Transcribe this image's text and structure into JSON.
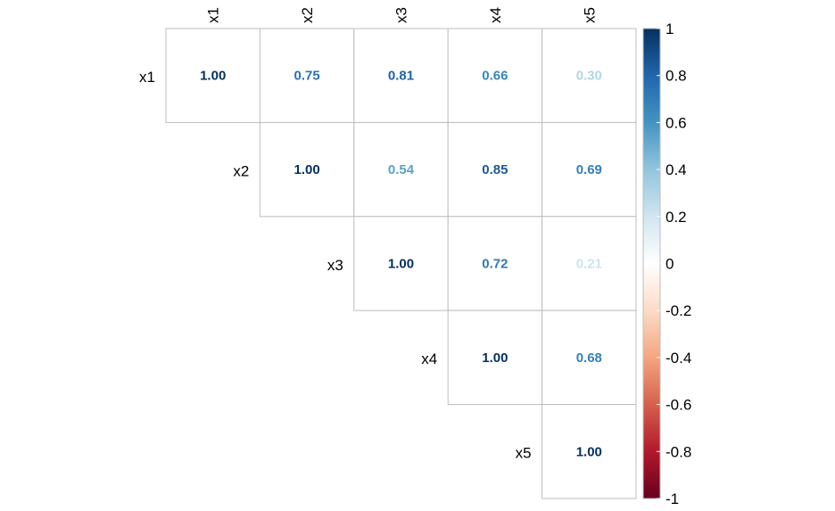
{
  "chart_data": {
    "type": "heatmap",
    "subtype": "correlation-upper-triangle",
    "variables": [
      "x1",
      "x2",
      "x3",
      "x4",
      "x5"
    ],
    "matrix": [
      [
        1.0,
        0.75,
        0.81,
        0.66,
        0.3
      ],
      [
        null,
        1.0,
        0.54,
        0.85,
        0.69
      ],
      [
        null,
        null,
        1.0,
        0.72,
        0.21
      ],
      [
        null,
        null,
        null,
        1.0,
        0.68
      ],
      [
        null,
        null,
        null,
        null,
        1.0
      ]
    ],
    "value_labels": [
      [
        "1.00",
        "0.75",
        "0.81",
        "0.66",
        "0.30"
      ],
      [
        "",
        "1.00",
        "0.54",
        "0.85",
        "0.69"
      ],
      [
        "",
        "",
        "1.00",
        "0.72",
        "0.21"
      ],
      [
        "",
        "",
        "",
        "1.00",
        "0.68"
      ],
      [
        "",
        "",
        "",
        "",
        "1.00"
      ]
    ],
    "colorbar": {
      "range": [
        -1,
        1
      ],
      "ticks": [
        "1",
        "0.8",
        "0.6",
        "0.4",
        "0.2",
        "0",
        "-0.2",
        "-0.4",
        "-0.6",
        "-0.8",
        "-1"
      ],
      "palette": [
        "#67001F",
        "#B2182B",
        "#D6604D",
        "#F4A582",
        "#FDDBC7",
        "#FFFFFF",
        "#D1E5F0",
        "#92C5DE",
        "#4393C3",
        "#2166AC",
        "#053061"
      ]
    }
  }
}
